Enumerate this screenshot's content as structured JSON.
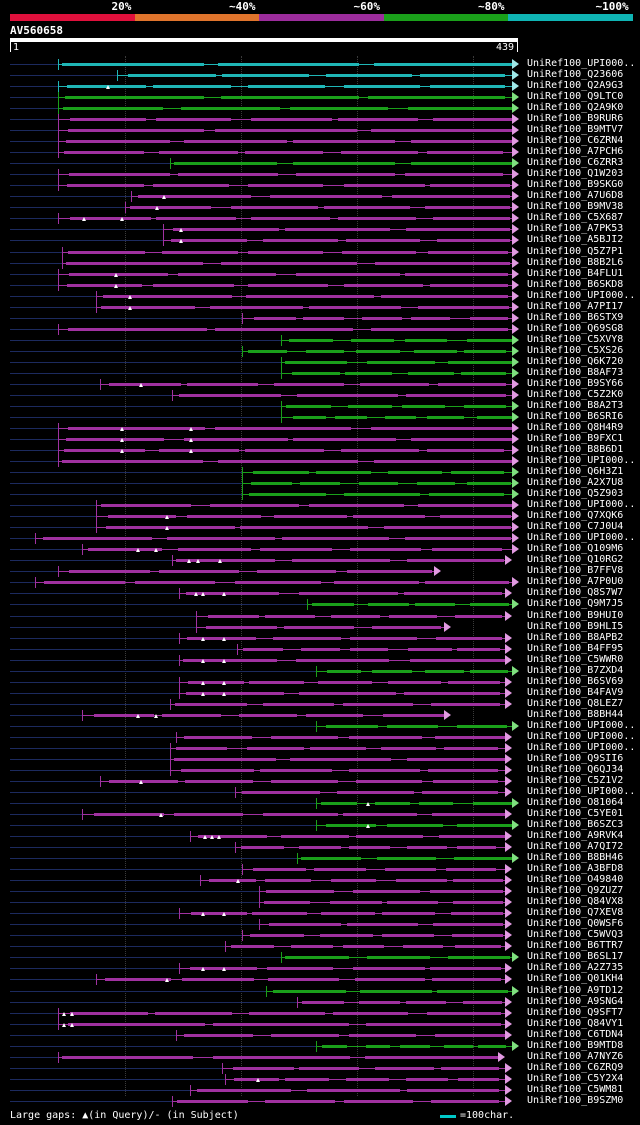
{
  "scale": {
    "labels": [
      "20%",
      "~40%",
      "~60%",
      "~80%",
      "~100%"
    ],
    "colors": [
      "#e0103c",
      "#e0742c",
      "#9c2c9c",
      "#1aa01a",
      "#0fb4b4"
    ]
  },
  "query_id": "AV560658",
  "ruler": {
    "start": "1",
    "end": "439"
  },
  "footer": {
    "large_gaps": "Large gaps: ▲(in Query)/- (in Subject)",
    "legend": "=100char."
  },
  "hits": [
    {
      "label": "UniRef100_UPI000..",
      "start": 58,
      "end": 514,
      "color": "#1fb6b6",
      "gaps": []
    },
    {
      "label": "UniRef100_Q23606",
      "start": 117,
      "end": 514,
      "color": "#1fb6b6",
      "gaps": []
    },
    {
      "label": "UniRef100_Q2A9G3",
      "start": 58,
      "end": 514,
      "color": "#1fb6b6",
      "gaps": [
        108
      ]
    },
    {
      "label": "UniRef100_Q9LTC0",
      "start": 58,
      "end": 514,
      "color": "#1aa01a",
      "gaps": []
    },
    {
      "label": "UniRef100_Q2A9K0",
      "start": 58,
      "end": 514,
      "color": "#1aa01a",
      "gaps": []
    },
    {
      "label": "UniRef100_B9RUR6",
      "start": 58,
      "end": 514,
      "color": "#a031a0",
      "gaps": []
    },
    {
      "label": "UniRef100_B9MTV7",
      "start": 58,
      "end": 514,
      "color": "#a031a0",
      "gaps": []
    },
    {
      "label": "UniRef100_C6ZRN4",
      "start": 58,
      "end": 514,
      "color": "#a031a0",
      "gaps": []
    },
    {
      "label": "UniRef100_A7PCH6",
      "start": 58,
      "end": 514,
      "color": "#a031a0",
      "gaps": []
    },
    {
      "label": "UniRef100_C6ZRR3",
      "start": 170,
      "end": 514,
      "color": "#1aa01a",
      "gaps": []
    },
    {
      "label": "UniRef100_Q1W203",
      "start": 58,
      "end": 514,
      "color": "#a031a0",
      "gaps": []
    },
    {
      "label": "UniRef100_B9SKG0",
      "start": 58,
      "end": 514,
      "color": "#a031a0",
      "gaps": []
    },
    {
      "label": "UniRef100_A7U6D8",
      "start": 131,
      "end": 514,
      "color": "#a031a0",
      "gaps": [
        164
      ]
    },
    {
      "label": "UniRef100_B9MV38",
      "start": 125,
      "end": 514,
      "color": "#a031a0",
      "gaps": [
        157
      ]
    },
    {
      "label": "UniRef100_C5X687",
      "start": 58,
      "end": 514,
      "color": "#a031a0",
      "gaps": [
        84,
        122
      ]
    },
    {
      "label": "UniRef100_A7PK53",
      "start": 163,
      "end": 514,
      "color": "#a031a0",
      "gaps": [
        181
      ]
    },
    {
      "label": "UniRef100_A5BJI2",
      "start": 163,
      "end": 514,
      "color": "#a031a0",
      "gaps": [
        181
      ]
    },
    {
      "label": "UniRef100_Q5Z7P1",
      "start": 62,
      "end": 514,
      "color": "#a031a0",
      "gaps": []
    },
    {
      "label": "UniRef100_B8B2L6",
      "start": 62,
      "end": 514,
      "color": "#a031a0",
      "gaps": []
    },
    {
      "label": "UniRef100_B4FLU1",
      "start": 58,
      "end": 514,
      "color": "#a031a0",
      "gaps": [
        116
      ]
    },
    {
      "label": "UniRef100_B6SKD8",
      "start": 58,
      "end": 514,
      "color": "#a031a0",
      "gaps": [
        116
      ]
    },
    {
      "label": "UniRef100_UPI000..",
      "start": 96,
      "end": 514,
      "color": "#a031a0",
      "gaps": [
        130
      ]
    },
    {
      "label": "UniRef100_A7PI17",
      "start": 96,
      "end": 514,
      "color": "#a031a0",
      "gaps": [
        130
      ]
    },
    {
      "label": "UniRef100_B6STX9",
      "start": 242,
      "end": 514,
      "color": "#a031a0",
      "gaps": []
    },
    {
      "label": "UniRef100_Q69SG8",
      "start": 58,
      "end": 514,
      "color": "#a031a0",
      "gaps": []
    },
    {
      "label": "UniRef100_C5XVY8",
      "start": 281,
      "end": 514,
      "color": "#1aa01a",
      "gaps": []
    },
    {
      "label": "UniRef100_C5XS26",
      "start": 242,
      "end": 514,
      "color": "#1aa01a",
      "gaps": []
    },
    {
      "label": "UniRef100_Q6K720",
      "start": 281,
      "end": 514,
      "color": "#1aa01a",
      "gaps": []
    },
    {
      "label": "UniRef100_B8AF73",
      "start": 281,
      "end": 514,
      "color": "#1aa01a",
      "gaps": []
    },
    {
      "label": "UniRef100_B9SY66",
      "start": 100,
      "end": 514,
      "color": "#a031a0",
      "gaps": [
        141
      ]
    },
    {
      "label": "UniRef100_C5Z2K0",
      "start": 172,
      "end": 514,
      "color": "#a031a0",
      "gaps": []
    },
    {
      "label": "UniRef100_B8A2T3",
      "start": 281,
      "end": 514,
      "color": "#1aa01a",
      "gaps": []
    },
    {
      "label": "UniRef100_B6SRI6",
      "start": 281,
      "end": 514,
      "color": "#1aa01a",
      "gaps": []
    },
    {
      "label": "UniRef100_Q8H4R9",
      "start": 58,
      "end": 514,
      "color": "#a031a0",
      "gaps": [
        122,
        191
      ]
    },
    {
      "label": "UniRef100_B9FXC1",
      "start": 58,
      "end": 514,
      "color": "#a031a0",
      "gaps": [
        122,
        191
      ]
    },
    {
      "label": "UniRef100_B8B6D1",
      "start": 58,
      "end": 514,
      "color": "#a031a0",
      "gaps": [
        122,
        191
      ]
    },
    {
      "label": "UniRef100_UPI000..",
      "start": 58,
      "end": 514,
      "color": "#a031a0",
      "gaps": []
    },
    {
      "label": "UniRef100_Q6H3Z1",
      "start": 242,
      "end": 514,
      "color": "#1aa01a",
      "gaps": []
    },
    {
      "label": "UniRef100_A2X7U8",
      "start": 242,
      "end": 514,
      "color": "#1aa01a",
      "gaps": []
    },
    {
      "label": "UniRef100_Q5Z903",
      "start": 242,
      "end": 514,
      "color": "#1aa01a",
      "gaps": []
    },
    {
      "label": "UniRef100_UPI000..",
      "start": 96,
      "end": 514,
      "color": "#a031a0",
      "gaps": []
    },
    {
      "label": "UniRef100_Q7XQK6",
      "start": 96,
      "end": 514,
      "color": "#a031a0",
      "gaps": [
        167
      ]
    },
    {
      "label": "UniRef100_C7J0U4",
      "start": 96,
      "end": 514,
      "color": "#a031a0",
      "gaps": [
        167
      ]
    },
    {
      "label": "UniRef100_UPI000..",
      "start": 35,
      "end": 514,
      "color": "#a031a0",
      "gaps": []
    },
    {
      "label": "UniRef100_Q109M6",
      "start": 82,
      "end": 514,
      "color": "#a031a0",
      "gaps": [
        138,
        156
      ]
    },
    {
      "label": "UniRef100_Q10RG2",
      "start": 172,
      "end": 507,
      "color": "#a031a0",
      "gaps": [
        189,
        198,
        220
      ]
    },
    {
      "label": "UniRef100_B7FFV8",
      "start": 58,
      "end": 436,
      "color": "#a031a0",
      "gaps": []
    },
    {
      "label": "UniRef100_A7P0U0",
      "start": 35,
      "end": 514,
      "color": "#a031a0",
      "gaps": []
    },
    {
      "label": "UniRef100_Q8S7W7",
      "start": 179,
      "end": 507,
      "color": "#a031a0",
      "gaps": [
        196,
        203,
        224
      ]
    },
    {
      "label": "UniRef100_Q9M7J5",
      "start": 307,
      "end": 514,
      "color": "#1aa01a",
      "gaps": []
    },
    {
      "label": "UniRef100_B9HUI0",
      "start": 196,
      "end": 507,
      "color": "#a031a0",
      "gaps": []
    },
    {
      "label": "UniRef100_B9HLI5",
      "start": 196,
      "end": 446,
      "color": "#a031a0",
      "gaps": []
    },
    {
      "label": "UniRef100_B8APB2",
      "start": 179,
      "end": 507,
      "color": "#a031a0",
      "gaps": [
        203,
        224
      ]
    },
    {
      "label": "UniRef100_B4FF95",
      "start": 237,
      "end": 507,
      "color": "#a031a0",
      "gaps": []
    },
    {
      "label": "UniRef100_C5WWR0",
      "start": 179,
      "end": 507,
      "color": "#a031a0",
      "gaps": [
        203,
        224
      ]
    },
    {
      "label": "UniRef100_B7ZXD4",
      "start": 316,
      "end": 514,
      "color": "#1aa01a",
      "gaps": []
    },
    {
      "label": "UniRef100_B6SV69",
      "start": 179,
      "end": 507,
      "color": "#a031a0",
      "gaps": [
        203,
        224
      ]
    },
    {
      "label": "UniRef100_B4FAV9",
      "start": 179,
      "end": 507,
      "color": "#a031a0",
      "gaps": [
        203,
        224
      ]
    },
    {
      "label": "UniRef100_Q8LEZ7",
      "start": 170,
      "end": 507,
      "color": "#a031a0",
      "gaps": []
    },
    {
      "label": "UniRef100_B8BH44",
      "start": 82,
      "end": 446,
      "color": "#a031a0",
      "gaps": [
        138,
        156
      ]
    },
    {
      "label": "UniRef100_UPI000..",
      "start": 316,
      "end": 514,
      "color": "#1aa01a",
      "gaps": []
    },
    {
      "label": "UniRef100_UPI000..",
      "start": 176,
      "end": 507,
      "color": "#a031a0",
      "gaps": []
    },
    {
      "label": "UniRef100_UPI000..",
      "start": 170,
      "end": 507,
      "color": "#a031a0",
      "gaps": []
    },
    {
      "label": "UniRef100_Q9SII6",
      "start": 170,
      "end": 507,
      "color": "#a031a0",
      "gaps": []
    },
    {
      "label": "UniRef100_Q6QJ34",
      "start": 170,
      "end": 507,
      "color": "#a031a0",
      "gaps": []
    },
    {
      "label": "UniRef100_C5Z1V2",
      "start": 100,
      "end": 507,
      "color": "#a031a0",
      "gaps": [
        141
      ]
    },
    {
      "label": "UniRef100_UPI000..",
      "start": 235,
      "end": 507,
      "color": "#a031a0",
      "gaps": []
    },
    {
      "label": "UniRef100_O81064",
      "start": 316,
      "end": 514,
      "color": "#1aa01a",
      "gaps": [
        368
      ]
    },
    {
      "label": "UniRef100_C5YE01",
      "start": 82,
      "end": 507,
      "color": "#a031a0",
      "gaps": [
        161
      ]
    },
    {
      "label": "UniRef100_B6SZC3",
      "start": 316,
      "end": 514,
      "color": "#1aa01a",
      "gaps": [
        368
      ]
    },
    {
      "label": "UniRef100_A9RVK4",
      "start": 190,
      "end": 507,
      "color": "#a031a0",
      "gaps": [
        205,
        212,
        219
      ]
    },
    {
      "label": "UniRef100_A7QI72",
      "start": 235,
      "end": 507,
      "color": "#a031a0",
      "gaps": []
    },
    {
      "label": "UniRef100_B8BH46",
      "start": 297,
      "end": 514,
      "color": "#1aa01a",
      "gaps": []
    },
    {
      "label": "UniRef100_A3BFD8",
      "start": 242,
      "end": 507,
      "color": "#a031a0",
      "gaps": []
    },
    {
      "label": "UniRef100_O49840",
      "start": 200,
      "end": 507,
      "color": "#a031a0",
      "gaps": [
        238
      ]
    },
    {
      "label": "UniRef100_Q9ZUZ7",
      "start": 259,
      "end": 507,
      "color": "#a031a0",
      "gaps": []
    },
    {
      "label": "UniRef100_Q84VX8",
      "start": 259,
      "end": 507,
      "color": "#a031a0",
      "gaps": []
    },
    {
      "label": "UniRef100_Q7XEV8",
      "start": 179,
      "end": 507,
      "color": "#a031a0",
      "gaps": [
        203,
        224
      ]
    },
    {
      "label": "UniRef100_Q0WSF6",
      "start": 259,
      "end": 507,
      "color": "#a031a0",
      "gaps": []
    },
    {
      "label": "UniRef100_C5WVQ3",
      "start": 242,
      "end": 507,
      "color": "#a031a0",
      "gaps": []
    },
    {
      "label": "UniRef100_B6TTR7",
      "start": 225,
      "end": 507,
      "color": "#a031a0",
      "gaps": []
    },
    {
      "label": "UniRef100_B6SL17",
      "start": 281,
      "end": 514,
      "color": "#1aa01a",
      "gaps": []
    },
    {
      "label": "UniRef100_A2Z735",
      "start": 179,
      "end": 507,
      "color": "#a031a0",
      "gaps": [
        203,
        224
      ]
    },
    {
      "label": "UniRef100_Q01KH4",
      "start": 96,
      "end": 507,
      "color": "#a031a0",
      "gaps": [
        167
      ]
    },
    {
      "label": "UniRef100_A9TD12",
      "start": 266,
      "end": 514,
      "color": "#1aa01a",
      "gaps": []
    },
    {
      "label": "UniRef100_A9SNG4",
      "start": 297,
      "end": 507,
      "color": "#a031a0",
      "gaps": []
    },
    {
      "label": "UniRef100_Q9SFT7",
      "start": 58,
      "end": 507,
      "color": "#a031a0",
      "gaps": [
        64,
        72
      ]
    },
    {
      "label": "UniRef100_Q84VY1",
      "start": 58,
      "end": 507,
      "color": "#a031a0",
      "gaps": [
        64,
        72
      ]
    },
    {
      "label": "UniRef100_C6TDN4",
      "start": 176,
      "end": 507,
      "color": "#a031a0",
      "gaps": []
    },
    {
      "label": "UniRef100_B9MTD8",
      "start": 316,
      "end": 514,
      "color": "#1aa01a",
      "gaps": []
    },
    {
      "label": "UniRef100_A7NYZ6",
      "start": 58,
      "end": 500,
      "color": "#a031a0",
      "gaps": []
    },
    {
      "label": "UniRef100_C6ZRQ9",
      "start": 222,
      "end": 507,
      "color": "#a031a0",
      "gaps": []
    },
    {
      "label": "UniRef100_C5Y2X4",
      "start": 225,
      "end": 507,
      "color": "#a031a0",
      "gaps": [
        258
      ]
    },
    {
      "label": "UniRef100_C5WM81",
      "start": 190,
      "end": 507,
      "color": "#a031a0",
      "gaps": []
    },
    {
      "label": "UniRef100_B9SZM0",
      "start": 172,
      "end": 507,
      "color": "#a031a0",
      "gaps": []
    }
  ]
}
